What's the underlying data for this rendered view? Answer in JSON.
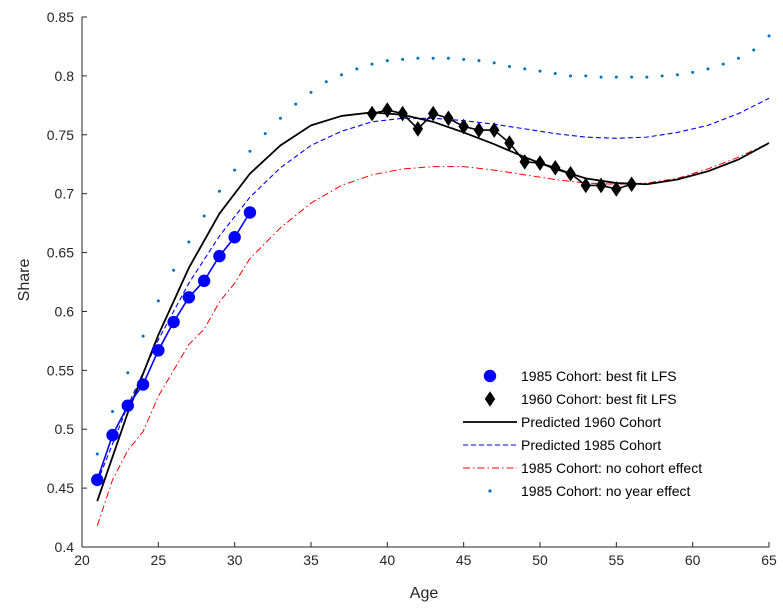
{
  "chart_data": {
    "type": "line",
    "title": "",
    "xlabel": "Age",
    "ylabel": "Share",
    "xlim": [
      20,
      65
    ],
    "ylim": [
      0.4,
      0.85
    ],
    "xticks": [
      "20",
      "25",
      "30",
      "35",
      "40",
      "45",
      "50",
      "55",
      "60",
      "65"
    ],
    "yticks": [
      "0.4",
      "0.45",
      "0.5",
      "0.55",
      "0.6",
      "0.65",
      "0.7",
      "0.75",
      "0.8",
      "0.85"
    ],
    "grid": false,
    "legend_position": "lower-right",
    "series": [
      {
        "name": "1985 Cohort: best fit LFS",
        "style": "markers-line",
        "marker": "circle",
        "color": "#0000ff",
        "x": [
          21,
          22,
          23,
          24,
          25,
          26,
          27,
          28,
          29,
          30,
          31
        ],
        "y": [
          0.457,
          0.495,
          0.52,
          0.538,
          0.567,
          0.591,
          0.612,
          0.626,
          0.647,
          0.663,
          0.684
        ]
      },
      {
        "name": "1960 Cohort: best fit LFS",
        "style": "markers-line",
        "marker": "diamond",
        "color": "#000000",
        "x": [
          39,
          40,
          41,
          42,
          43,
          44,
          45,
          46,
          47,
          48,
          49,
          50,
          51,
          52,
          53,
          54,
          55,
          56
        ],
        "y": [
          0.768,
          0.771,
          0.768,
          0.755,
          0.768,
          0.764,
          0.757,
          0.754,
          0.754,
          0.743,
          0.727,
          0.726,
          0.722,
          0.717,
          0.707,
          0.707,
          0.704,
          0.708
        ]
      },
      {
        "name": "Predicted 1960 Cohort",
        "style": "solid",
        "color": "#000000",
        "x": [
          21,
          23,
          25,
          27,
          29,
          31,
          33,
          35,
          37,
          39,
          41,
          43,
          45,
          47,
          49,
          51,
          53,
          55,
          57,
          59,
          61,
          63,
          65
        ],
        "y": [
          0.439,
          0.514,
          0.58,
          0.637,
          0.683,
          0.717,
          0.741,
          0.758,
          0.766,
          0.769,
          0.767,
          0.761,
          0.752,
          0.742,
          0.731,
          0.721,
          0.713,
          0.709,
          0.708,
          0.712,
          0.719,
          0.729,
          0.743
        ]
      },
      {
        "name": "Predicted 1985 Cohort",
        "style": "dashed",
        "color": "#0000ff",
        "x": [
          21,
          23,
          25,
          27,
          29,
          31,
          33,
          35,
          37,
          39,
          41,
          43,
          45,
          47,
          49,
          51,
          53,
          55,
          57,
          59,
          61,
          63,
          65
        ],
        "y": [
          0.455,
          0.52,
          0.576,
          0.624,
          0.664,
          0.697,
          0.722,
          0.741,
          0.753,
          0.761,
          0.764,
          0.764,
          0.762,
          0.759,
          0.755,
          0.751,
          0.748,
          0.747,
          0.748,
          0.752,
          0.758,
          0.768,
          0.781
        ]
      },
      {
        "name": "1985 Cohort: no cohort effect",
        "style": "dashdot",
        "color": "#ff0000",
        "x": [
          21,
          22,
          23,
          24,
          25,
          26,
          27,
          28,
          29,
          30,
          31,
          33,
          35,
          37,
          39,
          41,
          43,
          45,
          47,
          49,
          51,
          53,
          55,
          57,
          59,
          61,
          63,
          65
        ],
        "y": [
          0.418,
          0.457,
          0.482,
          0.498,
          0.528,
          0.55,
          0.572,
          0.585,
          0.608,
          0.624,
          0.645,
          0.671,
          0.692,
          0.707,
          0.716,
          0.721,
          0.723,
          0.723,
          0.72,
          0.716,
          0.712,
          0.709,
          0.708,
          0.709,
          0.713,
          0.721,
          0.731,
          0.743
        ]
      },
      {
        "name": "1985 Cohort: no year effect",
        "style": "dotted",
        "color": "#0072bd",
        "x": [
          21,
          22,
          23,
          24,
          25,
          26,
          27,
          28,
          29,
          30,
          31,
          32,
          33,
          34,
          35,
          36,
          37,
          38,
          39,
          40,
          41,
          42,
          43,
          44,
          45,
          46,
          47,
          48,
          49,
          50,
          51,
          52,
          53,
          54,
          55,
          56,
          57,
          58,
          59,
          60,
          61,
          62,
          63,
          64,
          65
        ],
        "y": [
          0.479,
          0.515,
          0.548,
          0.579,
          0.609,
          0.635,
          0.659,
          0.681,
          0.702,
          0.72,
          0.736,
          0.751,
          0.764,
          0.776,
          0.786,
          0.795,
          0.801,
          0.806,
          0.81,
          0.813,
          0.814,
          0.815,
          0.815,
          0.815,
          0.814,
          0.813,
          0.811,
          0.808,
          0.806,
          0.804,
          0.802,
          0.8,
          0.8,
          0.799,
          0.799,
          0.799,
          0.799,
          0.8,
          0.801,
          0.803,
          0.806,
          0.81,
          0.815,
          0.822,
          0.834
        ]
      }
    ]
  }
}
